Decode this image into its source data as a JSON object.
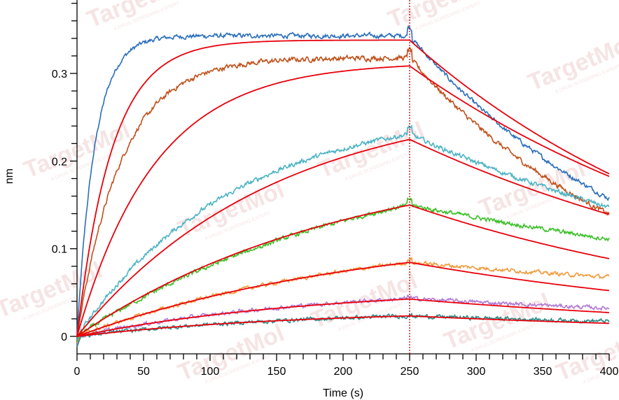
{
  "watermark": {
    "brand": "TargetMol",
    "tagline": "A DRUG SCREENING EXPERT"
  },
  "chart_data": {
    "type": "line",
    "xlabel": "Time (s)",
    "ylabel": "nm",
    "xlim": [
      0,
      400
    ],
    "ylim": [
      -0.02,
      0.385
    ],
    "x_ticks": [
      0,
      50,
      100,
      150,
      200,
      250,
      300,
      350,
      400
    ],
    "x_tick_labels": [
      "0",
      "50",
      "100",
      "150",
      "200",
      "250",
      "300",
      "350",
      "400"
    ],
    "y_ticks": [
      0,
      0.1,
      0.2,
      0.3
    ],
    "y_tick_labels": [
      "0",
      "0.1",
      "0.2",
      "0.3"
    ],
    "association_end": 250,
    "divider_color": "#cc0000",
    "fit_color": "#e8000b",
    "grid": false,
    "legend": "none",
    "series": [
      {
        "color": "#2a6ebb",
        "kobs": 0.075,
        "kd": 0.0052,
        "req": 0.343,
        "ripple": 0.0018
      },
      {
        "color": "#c0501a",
        "kobs": 0.03,
        "kd": 0.0055,
        "req": 0.318,
        "ripple": 0.002
      },
      {
        "color": "#4bb3c4",
        "kobs": 0.0085,
        "kd": 0.003,
        "req": 0.262,
        "ripple": 0.0018
      },
      {
        "color": "#3cbf2a",
        "kobs": 0.0045,
        "kd": 0.002,
        "req": 0.222,
        "ripple": 0.0017
      },
      {
        "color": "#f29a3a",
        "kobs": 0.0045,
        "kd": 0.0015,
        "req": 0.125,
        "ripple": 0.0015
      },
      {
        "color": "#b07ad6",
        "kobs": 0.0055,
        "kd": 0.002,
        "req": 0.058,
        "ripple": 0.0015
      },
      {
        "color": "#2f8a86",
        "kobs": 0.006,
        "kd": 0.002,
        "req": 0.03,
        "ripple": 0.0015
      }
    ],
    "fits": [
      {
        "kobs": 0.038,
        "kd": 0.004,
        "req": 0.338
      },
      {
        "kobs": 0.017,
        "kd": 0.0035,
        "req": 0.313
      },
      {
        "kobs": 0.0068,
        "kd": 0.0032,
        "req": 0.275
      },
      {
        "kobs": 0.005,
        "kd": 0.0035,
        "req": 0.21
      },
      {
        "kobs": 0.0045,
        "kd": 0.0032,
        "req": 0.125
      },
      {
        "kobs": 0.0055,
        "kd": 0.003,
        "req": 0.057
      },
      {
        "kobs": 0.006,
        "kd": 0.003,
        "req": 0.03
      }
    ]
  }
}
